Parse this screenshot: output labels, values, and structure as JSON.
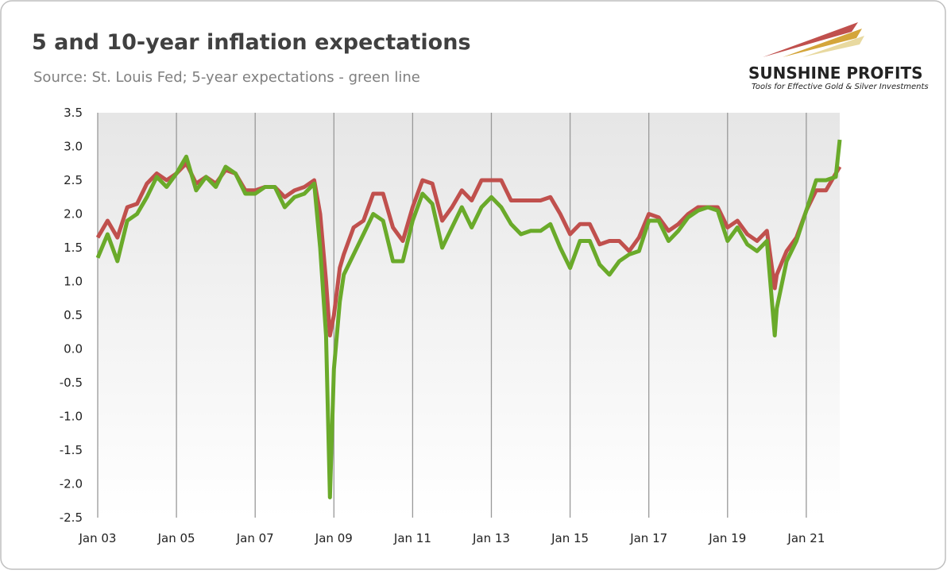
{
  "chart_data": {
    "type": "line",
    "title": "5 and 10-year inflation expectations",
    "subtitle": "Source: St. Louis Fed; 5-year expectations - green line",
    "logo": {
      "name": "SUNSHINE PROFITS",
      "tagline": "Tools for Effective Gold & Silver Investments"
    },
    "x": [
      2003.0,
      2003.25,
      2003.5,
      2003.75,
      2004.0,
      2004.25,
      2004.5,
      2004.75,
      2005.0,
      2005.25,
      2005.5,
      2005.75,
      2006.0,
      2006.25,
      2006.5,
      2006.75,
      2007.0,
      2007.25,
      2007.5,
      2007.75,
      2008.0,
      2008.25,
      2008.5,
      2008.65,
      2008.8,
      2008.9,
      2009.0,
      2009.15,
      2009.25,
      2009.5,
      2009.75,
      2010.0,
      2010.25,
      2010.5,
      2010.75,
      2011.0,
      2011.25,
      2011.5,
      2011.75,
      2012.0,
      2012.25,
      2012.5,
      2012.75,
      2013.0,
      2013.25,
      2013.5,
      2013.75,
      2014.0,
      2014.25,
      2014.5,
      2014.75,
      2015.0,
      2015.25,
      2015.5,
      2015.75,
      2016.0,
      2016.25,
      2016.5,
      2016.75,
      2017.0,
      2017.25,
      2017.5,
      2017.75,
      2018.0,
      2018.25,
      2018.5,
      2018.75,
      2019.0,
      2019.25,
      2019.5,
      2019.75,
      2020.0,
      2020.2,
      2020.25,
      2020.5,
      2020.75,
      2021.0,
      2021.25,
      2021.5,
      2021.75,
      2021.85
    ],
    "series": [
      {
        "name": "10-year",
        "color": "#c0504d",
        "values": [
          1.65,
          1.9,
          1.65,
          2.1,
          2.15,
          2.45,
          2.6,
          2.5,
          2.6,
          2.75,
          2.45,
          2.55,
          2.45,
          2.65,
          2.6,
          2.35,
          2.35,
          2.4,
          2.4,
          2.25,
          2.35,
          2.4,
          2.5,
          2.0,
          1.0,
          0.2,
          0.5,
          1.2,
          1.4,
          1.8,
          1.9,
          2.3,
          2.3,
          1.8,
          1.6,
          2.1,
          2.5,
          2.45,
          1.9,
          2.1,
          2.35,
          2.2,
          2.5,
          2.5,
          2.5,
          2.2,
          2.2,
          2.2,
          2.2,
          2.25,
          2.0,
          1.7,
          1.85,
          1.85,
          1.55,
          1.6,
          1.6,
          1.45,
          1.65,
          2.0,
          1.95,
          1.75,
          1.85,
          2.0,
          2.1,
          2.1,
          2.1,
          1.8,
          1.9,
          1.7,
          1.6,
          1.75,
          0.9,
          1.1,
          1.45,
          1.65,
          2.05,
          2.35,
          2.35,
          2.6,
          2.7
        ]
      },
      {
        "name": "5-year",
        "color": "#6aaa2a",
        "values": [
          1.35,
          1.7,
          1.3,
          1.9,
          2.0,
          2.25,
          2.55,
          2.4,
          2.6,
          2.85,
          2.35,
          2.55,
          2.4,
          2.7,
          2.6,
          2.3,
          2.3,
          2.4,
          2.4,
          2.1,
          2.25,
          2.3,
          2.45,
          1.5,
          0.2,
          -2.2,
          -0.3,
          0.7,
          1.1,
          1.4,
          1.7,
          2.0,
          1.9,
          1.3,
          1.3,
          1.9,
          2.3,
          2.15,
          1.5,
          1.8,
          2.1,
          1.8,
          2.1,
          2.25,
          2.1,
          1.85,
          1.7,
          1.75,
          1.75,
          1.85,
          1.5,
          1.2,
          1.6,
          1.6,
          1.25,
          1.1,
          1.3,
          1.4,
          1.45,
          1.9,
          1.9,
          1.6,
          1.75,
          1.95,
          2.05,
          2.1,
          2.05,
          1.6,
          1.8,
          1.55,
          1.45,
          1.6,
          0.2,
          0.6,
          1.3,
          1.6,
          2.05,
          2.5,
          2.5,
          2.55,
          3.1
        ]
      }
    ],
    "xlim": [
      2003.0,
      2021.85
    ],
    "xticks": [
      {
        "value": 2003,
        "label": "Jan 03"
      },
      {
        "value": 2005,
        "label": "Jan 05"
      },
      {
        "value": 2007,
        "label": "Jan 07"
      },
      {
        "value": 2009,
        "label": "Jan 09"
      },
      {
        "value": 2011,
        "label": "Jan 11"
      },
      {
        "value": 2013,
        "label": "Jan 13"
      },
      {
        "value": 2015,
        "label": "Jan 15"
      },
      {
        "value": 2017,
        "label": "Jan 17"
      },
      {
        "value": 2019,
        "label": "Jan 19"
      },
      {
        "value": 2021,
        "label": "Jan 21"
      }
    ],
    "ylim": [
      -2.5,
      3.5
    ],
    "yticks": [
      3.5,
      {
        "value": 3,
        "label": "3.0"
      },
      2.5,
      {
        "value": 2,
        "label": "2.0"
      },
      1.5,
      {
        "value": 1,
        "label": "1.0"
      },
      0.5,
      {
        "value": 0,
        "label": "0.0"
      },
      -0.5,
      {
        "value": -1,
        "label": "-1.0"
      },
      -1.5,
      {
        "value": -2,
        "label": "-2.0"
      },
      -2.5
    ],
    "grid": "x"
  }
}
